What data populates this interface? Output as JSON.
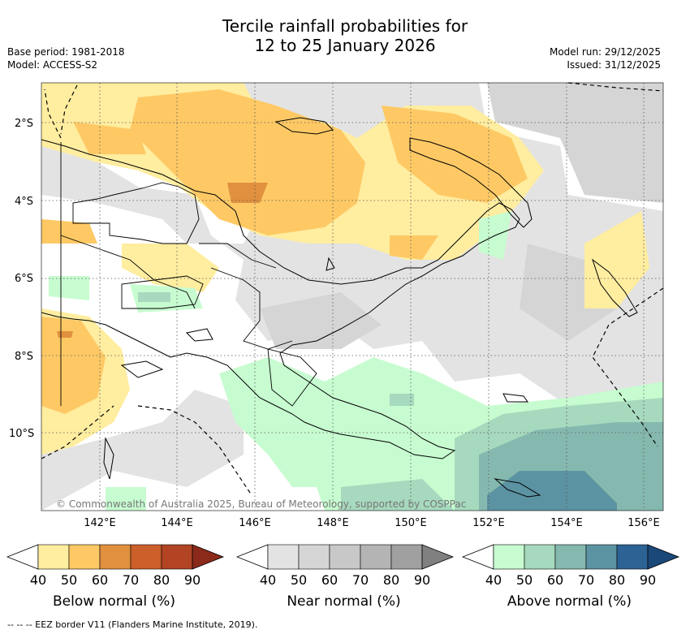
{
  "header": {
    "title_line1": "Tercile rainfall probabilities for",
    "title_line2": "12 to 25 January 2026",
    "base_period": "Base period: 1981-2018",
    "model": "Model: ACCESS-S2",
    "model_run": "Model run: 29/12/2025",
    "issued": "Issued: 31/12/2025"
  },
  "map": {
    "region": "Papua New Guinea",
    "lat_labels": [
      "2°S",
      "4°S",
      "6°S",
      "8°S",
      "10°S"
    ],
    "lon_labels": [
      "142°E",
      "144°E",
      "146°E",
      "148°E",
      "150°E",
      "152°E",
      "154°E",
      "156°E"
    ],
    "copyright": "© Commonwealth of Australia 2025, Bureau of Meteorology, supported by COSPPac",
    "colors": {
      "below": [
        "#ffeda0",
        "#fec965",
        "#e0903e",
        "#cc5f2a",
        "#b24424",
        "#8b2a1a"
      ],
      "near": [
        "#e3e3e3",
        "#d5d5d5",
        "#c8c8c8",
        "#b4b4b4",
        "#a0a0a0",
        "#808080"
      ],
      "above": [
        "#c7fcd0",
        "#a6d9bd",
        "#85b9b0",
        "#5b93a2",
        "#2c6294",
        "#1a4878"
      ]
    }
  },
  "colorbars": [
    {
      "label": "Below normal (%)",
      "ticks": [
        "40",
        "50",
        "60",
        "70",
        "80",
        "90"
      ]
    },
    {
      "label": "Near normal (%)",
      "ticks": [
        "40",
        "50",
        "60",
        "70",
        "80",
        "90"
      ]
    },
    {
      "label": "Above normal (%)",
      "ticks": [
        "40",
        "50",
        "60",
        "70",
        "80",
        "90"
      ]
    }
  ],
  "footnote": "--  --  -- EEZ border V11 (Flanders Marine Institute, 2019)."
}
